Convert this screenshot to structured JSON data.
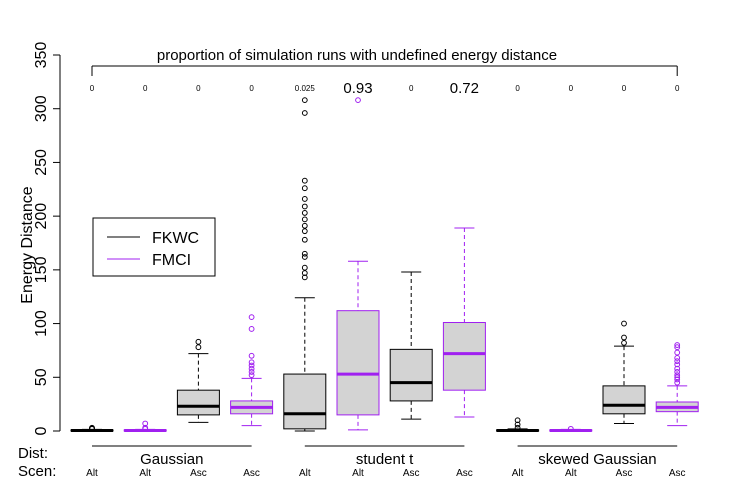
{
  "chart_data": {
    "type": "box",
    "ylabel": "Energy Distance",
    "ylim": [
      0,
      350
    ],
    "yticks": [
      0,
      50,
      100,
      150,
      200,
      250,
      300,
      350
    ],
    "annotation_title": "proportion of simulation runs with undefined energy distance",
    "proportions": [
      "0",
      "0",
      "0",
      "0",
      "0.025",
      "0.93",
      "0",
      "0.72",
      "0",
      "0",
      "0",
      "0"
    ],
    "dist_label": "Dist:",
    "scen_label": "Scen:",
    "groups": [
      {
        "label": "Gaussian"
      },
      {
        "label": "student t"
      },
      {
        "label": "skewed Gaussian"
      }
    ],
    "legend": [
      {
        "label": "FKWC",
        "color": "#000000"
      },
      {
        "label": "FMCI",
        "color": "#a020f0"
      }
    ],
    "series_colors": {
      "FKWC": "#000000",
      "FMCI": "#a020f0"
    },
    "boxes": [
      {
        "scen": "Alt",
        "method": "FKWC",
        "whisker_low": 0,
        "q1": 0,
        "median": 0.5,
        "q3": 1,
        "whisker_high": 1.5,
        "outliers": [
          2,
          2.5,
          3
        ]
      },
      {
        "scen": "Alt",
        "method": "FMCI",
        "whisker_low": 0,
        "q1": 0,
        "median": 0.5,
        "q3": 1,
        "whisker_high": 1.5,
        "outliers": [
          2,
          3,
          7
        ]
      },
      {
        "scen": "Asc",
        "method": "FKWC",
        "whisker_low": 8,
        "q1": 15,
        "median": 23,
        "q3": 38,
        "whisker_high": 72,
        "outliers": [
          78,
          83
        ]
      },
      {
        "scen": "Asc",
        "method": "FMCI",
        "whisker_low": 5,
        "q1": 16,
        "median": 22,
        "q3": 28,
        "whisker_high": 49,
        "outliers": [
          52,
          55,
          58,
          61,
          64,
          70,
          95,
          106
        ]
      },
      {
        "scen": "Alt",
        "method": "FKWC",
        "whisker_low": 0,
        "q1": 2,
        "median": 16,
        "q3": 53,
        "whisker_high": 124,
        "outliers": [
          143,
          147,
          152,
          162,
          165,
          178,
          186,
          191,
          197,
          203,
          209,
          216,
          226,
          233,
          296,
          308
        ]
      },
      {
        "scen": "Alt",
        "method": "FMCI",
        "whisker_low": 1,
        "q1": 15,
        "median": 53,
        "q3": 112,
        "whisker_high": 158,
        "outliers": [
          308
        ]
      },
      {
        "scen": "Asc",
        "method": "FKWC",
        "whisker_low": 11,
        "q1": 28,
        "median": 45,
        "q3": 76,
        "whisker_high": 148,
        "outliers": []
      },
      {
        "scen": "Asc",
        "method": "FMCI",
        "whisker_low": 13,
        "q1": 38,
        "median": 72,
        "q3": 101,
        "whisker_high": 189,
        "outliers": []
      },
      {
        "scen": "Alt",
        "method": "FKWC",
        "whisker_low": 0,
        "q1": 0,
        "median": 0.5,
        "q3": 1,
        "whisker_high": 2,
        "outliers": [
          3,
          6,
          10
        ]
      },
      {
        "scen": "Alt",
        "method": "FMCI",
        "whisker_low": 0,
        "q1": 0,
        "median": 0.5,
        "q3": 1,
        "whisker_high": 1.5,
        "outliers": [
          2
        ]
      },
      {
        "scen": "Asc",
        "method": "FKWC",
        "whisker_low": 7,
        "q1": 16,
        "median": 24,
        "q3": 42,
        "whisker_high": 79,
        "outliers": [
          82,
          87,
          100
        ]
      },
      {
        "scen": "Asc",
        "method": "FMCI",
        "whisker_low": 5,
        "q1": 18,
        "median": 22,
        "q3": 27,
        "whisker_high": 42,
        "outliers": [
          45,
          48,
          50,
          52,
          55,
          58,
          62,
          65,
          68,
          73,
          78,
          80
        ]
      }
    ]
  }
}
